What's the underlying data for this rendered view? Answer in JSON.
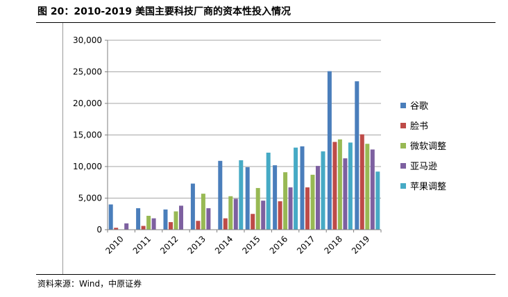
{
  "figure": {
    "title": "图 20：2010-2019 美国主要科技厂商的资本性投入情况",
    "source": "资料来源：Wind，中原证券"
  },
  "chart_data": {
    "type": "bar",
    "title": "",
    "xlabel": "",
    "ylabel": "",
    "ylim": [
      0,
      30000
    ],
    "yticks": [
      0,
      5000,
      10000,
      15000,
      20000,
      25000,
      30000
    ],
    "ytick_labels": [
      "0",
      "5,000",
      "10,000",
      "15,000",
      "20,000",
      "25,000",
      "30,000"
    ],
    "grid": true,
    "legend_position": "right",
    "categories": [
      "2010",
      "2011",
      "2012",
      "2013",
      "2014",
      "2015",
      "2016",
      "2017",
      "2018",
      "2019"
    ],
    "series": [
      {
        "name": "谷歌",
        "color": "#4a7ebb",
        "values": [
          4000,
          3400,
          3200,
          7300,
          10900,
          9900,
          10200,
          13200,
          25100,
          23500
        ]
      },
      {
        "name": "脸书",
        "color": "#be4b48",
        "values": [
          300,
          600,
          1200,
          1400,
          1800,
          2500,
          4500,
          6700,
          13900,
          15100
        ]
      },
      {
        "name": "微软调整",
        "color": "#98b954",
        "values": [
          0,
          2200,
          2900,
          5700,
          5300,
          6600,
          9100,
          8700,
          14300,
          13600
        ]
      },
      {
        "name": "亚马逊",
        "color": "#7d60a0",
        "values": [
          1000,
          1800,
          3800,
          3400,
          4900,
          4600,
          6700,
          10100,
          11300,
          12700
        ]
      },
      {
        "name": "苹果调整",
        "color": "#46aac5",
        "values": [
          0,
          0,
          0,
          0,
          11000,
          12200,
          13000,
          12400,
          13800,
          9200
        ]
      }
    ]
  }
}
